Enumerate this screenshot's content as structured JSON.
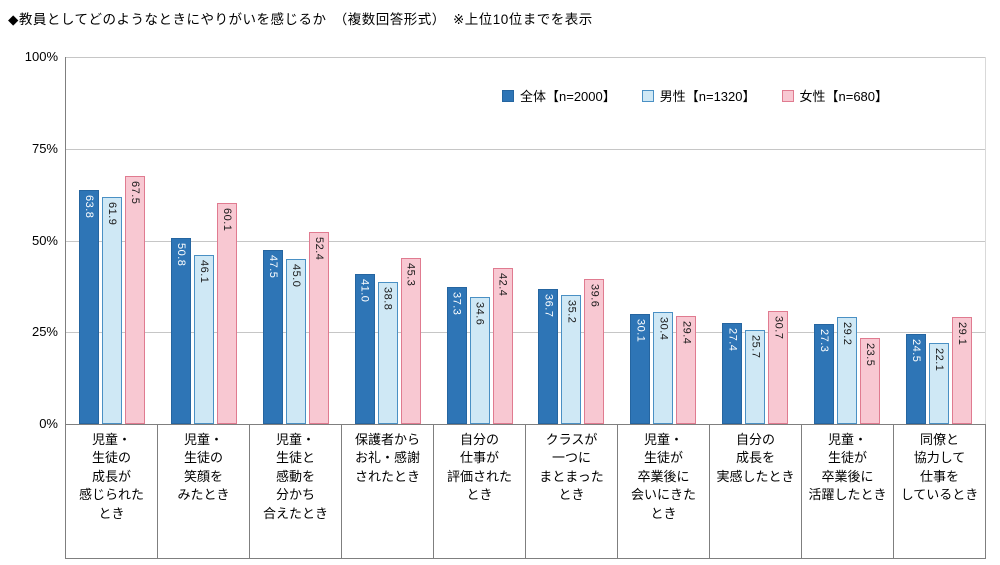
{
  "title": "◆教員としてどのようなときにやりがいを感じるか　（複数回答形式）　※上位10位までを表示",
  "chart_data": {
    "type": "bar",
    "title": "教員としてどのようなときにやりがいを感じるか（複数回答形式）上位10位までを表示",
    "categories": [
      "児童・\n生徒の\n成長が\n感じられた\nとき",
      "児童・\n生徒の\n笑顔を\nみたとき",
      "児童・\n生徒と\n感動を\n分かち\n合えたとき",
      "保護者から\nお礼・感謝\nされたとき",
      "自分の\n仕事が\n評価された\nとき",
      "クラスが\n一つに\nまとまった\nとき",
      "児童・\n生徒が\n卒業後に\n会いにきた\nとき",
      "自分の\n成長を\n実感したとき",
      "児童・\n生徒が\n卒業後に\n活躍したとき",
      "同僚と\n協力して\n仕事を\nしているとき"
    ],
    "series": [
      {
        "name": "全体【n=2000】",
        "values": [
          63.8,
          50.8,
          47.5,
          41.0,
          37.3,
          36.7,
          30.1,
          27.4,
          27.3,
          24.5
        ],
        "fill": "#2e75b6",
        "border": "#2565a0",
        "label_color": "#ffffff"
      },
      {
        "name": "男性【n=1320】",
        "values": [
          61.9,
          46.1,
          45.0,
          38.8,
          34.6,
          35.2,
          30.4,
          25.7,
          29.2,
          22.1
        ],
        "fill": "#cfe8f5",
        "border": "#4a90c4",
        "label_color": "#1a1a1a"
      },
      {
        "name": "女性【n=680】",
        "values": [
          67.5,
          60.1,
          52.4,
          45.3,
          42.4,
          39.6,
          29.4,
          30.7,
          23.5,
          29.1
        ],
        "fill": "#f8c8d2",
        "border": "#e07b90",
        "label_color": "#1a1a1a"
      }
    ],
    "ylim": [
      0,
      100
    ],
    "yticks": [
      {
        "value": 0,
        "label": "0%"
      },
      {
        "value": 25,
        "label": "25%"
      },
      {
        "value": 50,
        "label": "50%"
      },
      {
        "value": 75,
        "label": "75%"
      },
      {
        "value": 100,
        "label": "100%"
      }
    ],
    "grid_values": [
      25,
      50,
      75,
      100
    ],
    "grid": true,
    "legend_position": "top-right-inside"
  }
}
